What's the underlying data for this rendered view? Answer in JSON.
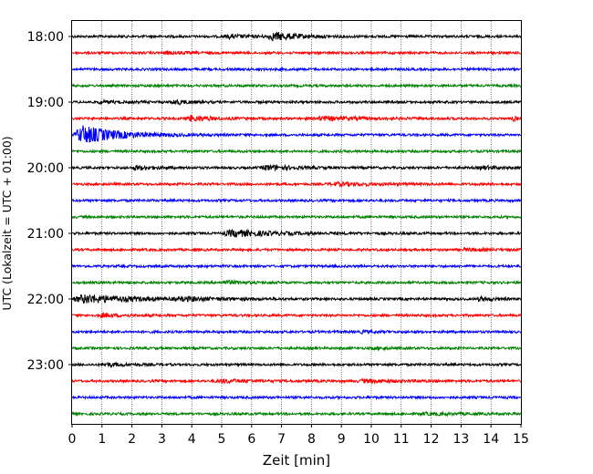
{
  "chart_data": {
    "type": "line",
    "title": "",
    "xlabel": "Zeit  [min]",
    "ylabel": "UTC (Lokalzeit = UTC + 01:00)",
    "xlim": [
      0,
      15
    ],
    "x_ticks": [
      "0",
      "1",
      "2",
      "3",
      "4",
      "5",
      "6",
      "7",
      "8",
      "9",
      "10",
      "11",
      "12",
      "13",
      "14",
      "15"
    ],
    "y_ticks": [
      {
        "label": "18:00",
        "row": 0
      },
      {
        "label": "19:00",
        "row": 4
      },
      {
        "label": "20:00",
        "row": 8
      },
      {
        "label": "21:00",
        "row": 12
      },
      {
        "label": "22:00",
        "row": 16
      },
      {
        "label": "23:00",
        "row": 20
      }
    ],
    "trace_interval_min": 15,
    "row_start": "18:00",
    "row_count": 24,
    "grid": "vertical dotted at each minute",
    "colors": [
      "#000000",
      "#ff0000",
      "#0000ff",
      "#008000"
    ],
    "events": [
      {
        "row": 0,
        "start_min": 6.5,
        "amplitude": 5,
        "duration_min": 2.0
      },
      {
        "row": 0,
        "start_min": 5.0,
        "amplitude": 2,
        "duration_min": 2.0
      },
      {
        "row": 1,
        "start_min": 3.0,
        "amplitude": 1.5,
        "duration_min": 1.5
      },
      {
        "row": 4,
        "start_min": 3.3,
        "amplitude": 3,
        "duration_min": 1.0
      },
      {
        "row": 4,
        "start_min": 0.8,
        "amplitude": 1.5,
        "duration_min": 1.5
      },
      {
        "row": 5,
        "start_min": 3.8,
        "amplitude": 4,
        "duration_min": 1.5
      },
      {
        "row": 5,
        "start_min": 8.0,
        "amplitude": 2.5,
        "duration_min": 3.0
      },
      {
        "row": 5,
        "start_min": 14.7,
        "amplitude": 3,
        "duration_min": 0.3
      },
      {
        "row": 6,
        "start_min": 0.05,
        "amplitude": 13,
        "duration_min": 2.5
      },
      {
        "row": 8,
        "start_min": 2.0,
        "amplitude": 3,
        "duration_min": 1.2
      },
      {
        "row": 8,
        "start_min": 6.3,
        "amplitude": 3.5,
        "duration_min": 1.8
      },
      {
        "row": 8,
        "start_min": 13.6,
        "amplitude": 2.5,
        "duration_min": 1.0
      },
      {
        "row": 9,
        "start_min": 8.5,
        "amplitude": 2,
        "duration_min": 3.0
      },
      {
        "row": 12,
        "start_min": 5.0,
        "amplitude": 4.5,
        "duration_min": 3.0
      },
      {
        "row": 13,
        "start_min": 13.0,
        "amplitude": 1.5,
        "duration_min": 1.5
      },
      {
        "row": 15,
        "start_min": 5.0,
        "amplitude": 2,
        "duration_min": 1.5
      },
      {
        "row": 16,
        "start_min": 0.0,
        "amplitude": 6,
        "duration_min": 3.5
      },
      {
        "row": 16,
        "start_min": 3.5,
        "amplitude": 2,
        "duration_min": 2.5
      },
      {
        "row": 16,
        "start_min": 13.5,
        "amplitude": 2.5,
        "duration_min": 1.0
      },
      {
        "row": 17,
        "start_min": 0.9,
        "amplitude": 2.5,
        "duration_min": 1.2
      },
      {
        "row": 18,
        "start_min": 9.6,
        "amplitude": 1.5,
        "duration_min": 1.0
      },
      {
        "row": 19,
        "start_min": 10.0,
        "amplitude": 1.5,
        "duration_min": 1.0
      },
      {
        "row": 20,
        "start_min": 1.0,
        "amplitude": 2,
        "duration_min": 1.5
      },
      {
        "row": 21,
        "start_min": 4.7,
        "amplitude": 2,
        "duration_min": 2.5
      },
      {
        "row": 21,
        "start_min": 9.5,
        "amplitude": 2,
        "duration_min": 2.5
      },
      {
        "row": 23,
        "start_min": 11.5,
        "amplitude": 1.2,
        "duration_min": 3.0
      }
    ],
    "background_noise": 1.3
  }
}
